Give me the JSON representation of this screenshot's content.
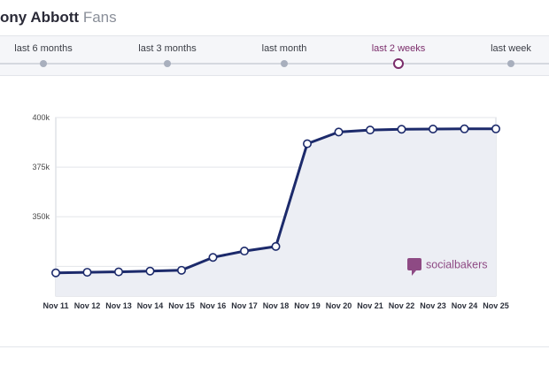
{
  "header": {
    "name": "ony Abbott",
    "suffix": "Fans"
  },
  "time_range": {
    "options": [
      "last 6 months",
      "last 3 months",
      "last month",
      "last 2 weeks",
      "last week"
    ],
    "selected": "last 2 weeks"
  },
  "brand": {
    "watermark": "socialbakers"
  },
  "colors": {
    "line": "#1c2a6b",
    "area": "#eceef4",
    "accent": "#7b2d6b",
    "watermark": "#8e4a84"
  },
  "chart_data": {
    "type": "area",
    "x": [
      "Nov 11",
      "Nov 12",
      "Nov 13",
      "Nov 14",
      "Nov 15",
      "Nov 16",
      "Nov 17",
      "Nov 18",
      "Nov 19",
      "Nov 20",
      "Nov 21",
      "Nov 22",
      "Nov 23",
      "Nov 24",
      "Nov 25"
    ],
    "series": [
      {
        "values": [
          321700,
          322000,
          322200,
          322600,
          323000,
          329500,
          332700,
          335000,
          386800,
          392700,
          393700,
          394100,
          394200,
          394300,
          394300
        ]
      }
    ],
    "yticks": [
      350000,
      375000,
      400000
    ],
    "ytick_labels": [
      "350k",
      "375k",
      "400k"
    ],
    "ylim": [
      310000,
      400000
    ],
    "grid": true,
    "legend": false
  }
}
